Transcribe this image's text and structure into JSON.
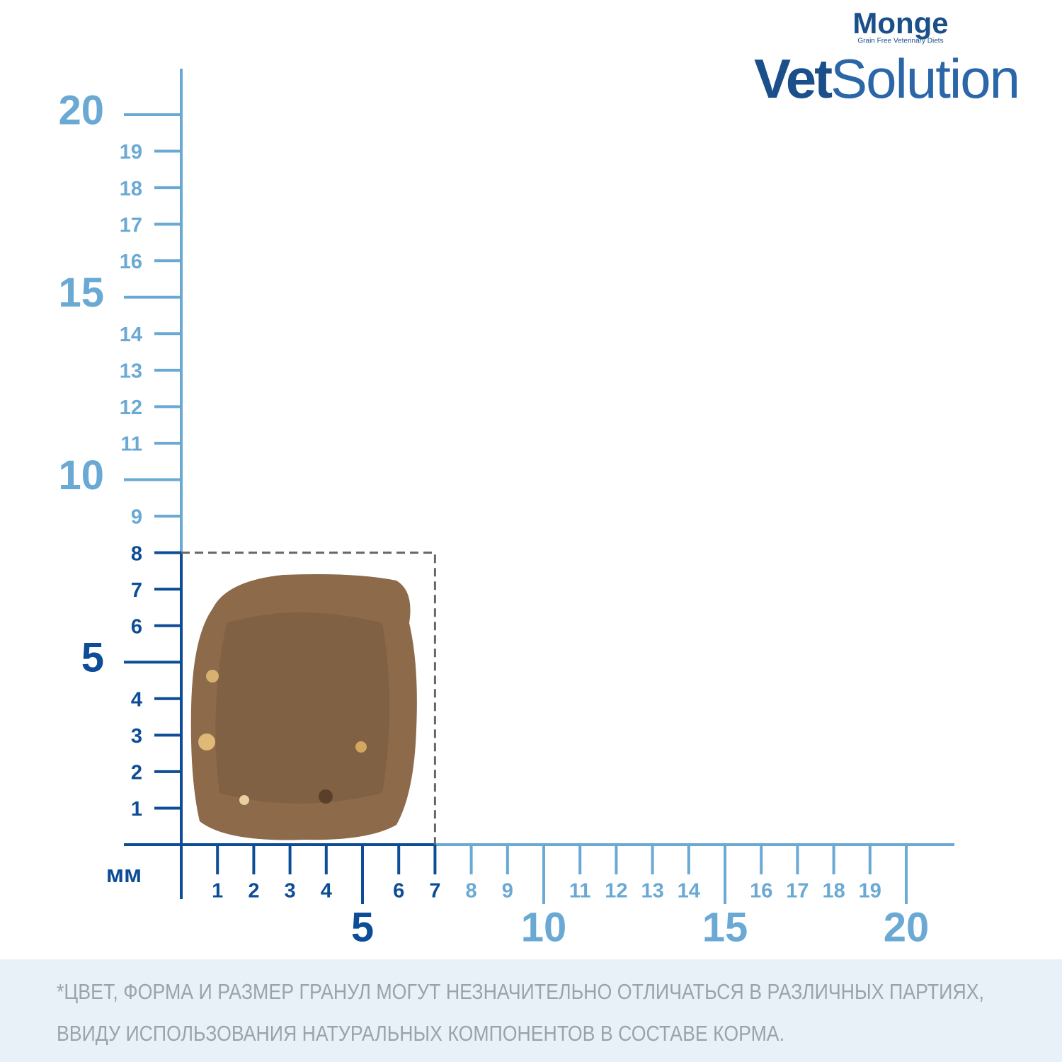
{
  "logo": {
    "brand": "Monge",
    "tagline": "Grain Free Veterinary Diets",
    "product_bold": "Vet",
    "product_light": "Solution"
  },
  "scale": {
    "unit": "мм",
    "xticks": [
      1,
      2,
      3,
      4,
      5,
      6,
      7,
      8,
      9,
      10,
      11,
      12,
      13,
      14,
      15,
      16,
      17,
      18,
      19,
      20
    ],
    "yticks": [
      1,
      2,
      3,
      4,
      5,
      6,
      7,
      8,
      9,
      10,
      11,
      12,
      13,
      14,
      15,
      16,
      17,
      18,
      19,
      20
    ]
  },
  "footnote": {
    "lines": [
      "*ЦВЕТ, ФОРМА И РАЗМЕР ГРАНУЛ МОГУТ НЕЗНАЧИТЕЛЬНО ОТЛИЧАТЬСЯ В РАЗЛИЧНЫХ ПАРТИЯХ,",
      "ВВИДУ ИСПОЛЬЗОВАНИЯ НАТУРАЛЬНЫХ КОМПОНЕНТОВ В СОСТАВЕ КОРМА."
    ]
  }
}
